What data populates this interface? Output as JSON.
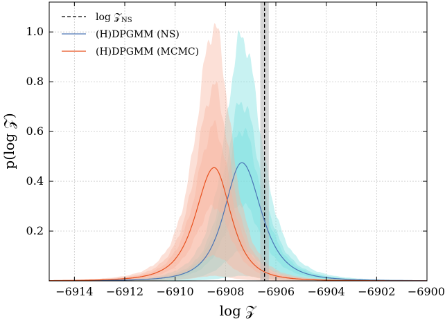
{
  "chart_data": {
    "type": "area",
    "xlabel": "log 𝒵",
    "ylabel": "p(log 𝒵)",
    "xlim": [
      -6915,
      -6900
    ],
    "ylim": [
      0,
      1.12
    ],
    "x_ticks": [
      -6914,
      -6912,
      -6910,
      -6908,
      -6906,
      -6904,
      -6902,
      -6900
    ],
    "x_tick_labels": [
      "−6914",
      "−6912",
      "−6910",
      "−6908",
      "−6906",
      "−6904",
      "−6902",
      "−6900"
    ],
    "y_ticks": [
      0.2,
      0.4,
      0.6,
      0.8,
      1.0
    ],
    "y_tick_labels": [
      "0.2",
      "0.4",
      "0.6",
      "0.8",
      "1.0"
    ],
    "grid": true,
    "legend_position": "top-left",
    "reference": {
      "label": "log 𝒵NS",
      "label_main": "log 𝒵",
      "label_sub": "NS",
      "x": -6906.45,
      "band": [
        -6906.62,
        -6906.28
      ],
      "color": "#000000",
      "band_color": "#bbbbbb"
    },
    "series": [
      {
        "name": "(H)DPGMM (NS)",
        "color": "#4a74b5",
        "band_color": "#7ddfdf",
        "mode": -6907.35,
        "width_left": 0.95,
        "width_right": 1.05,
        "median_peak": 0.475,
        "bands": [
          {
            "level": "outer",
            "peak": 0.98,
            "lower_peak": 0.02
          },
          {
            "level": "middle",
            "peak": 0.72,
            "lower_peak": 0.12
          },
          {
            "level": "inner",
            "peak": 0.61,
            "lower_peak": 0.31
          }
        ]
      },
      {
        "name": "(H)DPGMM (MCMC)",
        "color": "#e8501d",
        "band_color": "#f9b49f",
        "mode": -6908.45,
        "width_left": 1.0,
        "width_right": 0.9,
        "median_peak": 0.455,
        "bands": [
          {
            "level": "outer",
            "peak": 1.02,
            "lower_peak": 0.02
          },
          {
            "level": "middle",
            "peak": 0.78,
            "lower_peak": 0.1
          },
          {
            "level": "inner",
            "peak": 0.62,
            "lower_peak": 0.3
          }
        ]
      }
    ]
  }
}
